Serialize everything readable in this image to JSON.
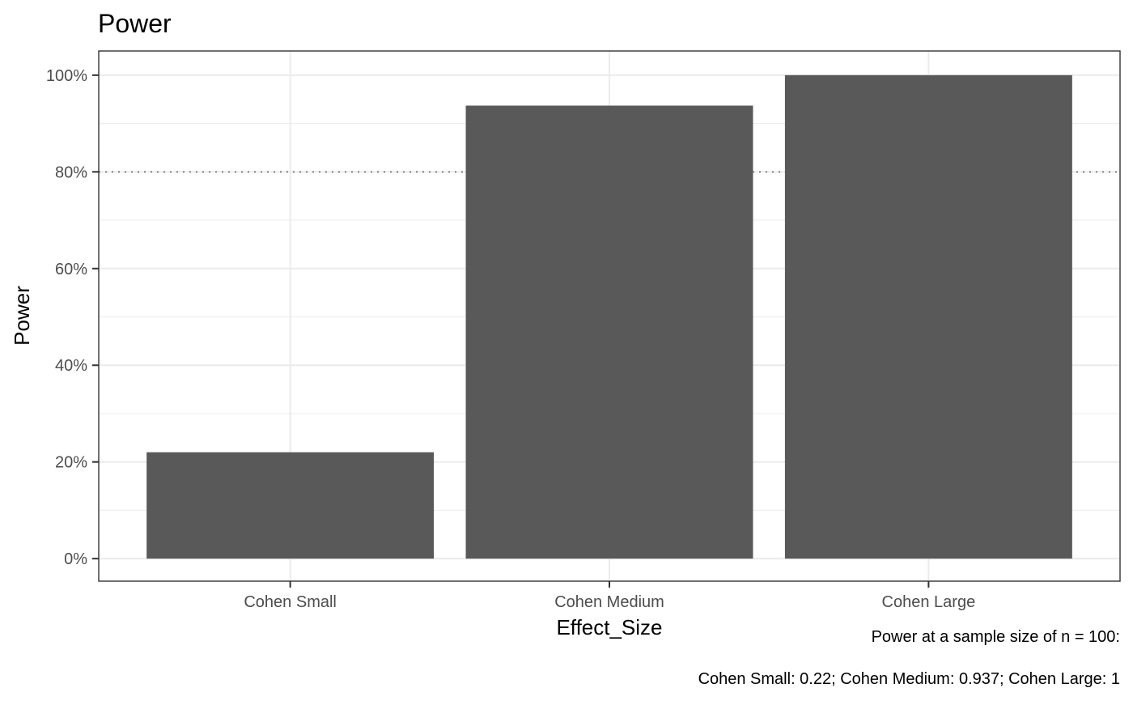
{
  "chart_data": {
    "type": "bar",
    "title": "Power",
    "xlabel": "Effect_Size",
    "ylabel": "Power",
    "categories": [
      "Cohen Small",
      "Cohen Medium",
      "Cohen Large"
    ],
    "values": [
      0.22,
      0.937,
      1
    ],
    "ylim": [
      -0.0466,
      1.05
    ],
    "yticks": [
      0,
      0.2,
      0.4,
      0.6,
      0.8,
      1.0
    ],
    "ytick_labels": [
      "0%",
      "20%",
      "40%",
      "60%",
      "80%",
      "100%"
    ],
    "reference_line": {
      "y": 0.8,
      "style": "dotted"
    },
    "grid": true,
    "legend": "none",
    "bar_color": "#595959",
    "caption": [
      "Power at a sample size of n = 100:",
      "Cohen Small: 0.22;  Cohen Medium: 0.937;  Cohen Large: 1"
    ]
  }
}
